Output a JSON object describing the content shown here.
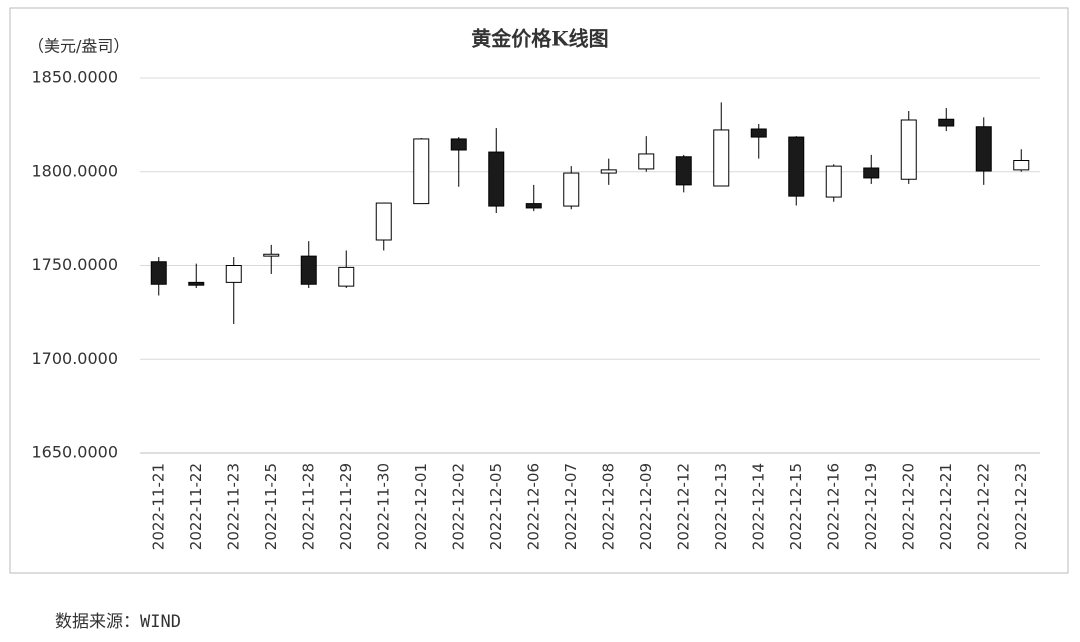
{
  "chart_data": {
    "type": "candlestick",
    "title": "黄金价格K线图",
    "unit_label": "（美元/盎司）",
    "source": "数据来源：WIND",
    "categories": [
      "2022-11-21",
      "2022-11-22",
      "2022-11-23",
      "2022-11-25",
      "2022-11-28",
      "2022-11-29",
      "2022-11-30",
      "2022-12-01",
      "2022-12-02",
      "2022-12-05",
      "2022-12-06",
      "2022-12-07",
      "2022-12-08",
      "2022-12-09",
      "2022-12-12",
      "2022-12-13",
      "2022-12-14",
      "2022-12-15",
      "2022-12-16",
      "2022-12-19",
      "2022-12-20",
      "2022-12-21",
      "2022-12-22",
      "2022-12-23"
    ],
    "open": [
      1752,
      1741,
      1741,
      1755,
      1755,
      1739,
      1763.6,
      1783,
      1817.5,
      1810.5,
      1783,
      1781.7,
      1799.3,
      1801.5,
      1808,
      1792.4,
      1822.8,
      1818.5,
      1786.5,
      1802,
      1796,
      1828,
      1824,
      1801
    ],
    "high": [
      1754.5,
      1751,
      1754.5,
      1761,
      1763,
      1758,
      1783.5,
      1818,
      1818.5,
      1823.3,
      1793,
      1803,
      1807,
      1819,
      1809,
      1837,
      1825.5,
      1819,
      1804,
      1809,
      1832.4,
      1834,
      1829,
      1812
    ],
    "low": [
      1734,
      1738,
      1718.8,
      1745.5,
      1738,
      1738,
      1758,
      1783,
      1792,
      1778,
      1779,
      1780,
      1793,
      1800,
      1789,
      1792.4,
      1807,
      1782,
      1784,
      1793.5,
      1793.5,
      1821.7,
      1793,
      1800
    ],
    "close": [
      1740,
      1739.5,
      1750,
      1756,
      1740,
      1749,
      1783.3,
      1817.5,
      1811.6,
      1781.7,
      1780.7,
      1799.3,
      1801,
      1809.5,
      1793,
      1822.3,
      1818.5,
      1787,
      1803,
      1796.7,
      1827.6,
      1824.4,
      1800.4,
      1806
    ],
    "up_color": "#ffffff",
    "down_color": "#1a1a1a",
    "edge_color": "#000000",
    "ylim": [
      1650,
      1850
    ],
    "yticks": [
      {
        "value": 1650,
        "label": "1650.0000"
      },
      {
        "value": 1700,
        "label": "1700.0000"
      },
      {
        "value": 1750,
        "label": "1750.0000"
      },
      {
        "value": 1800,
        "label": "1800.0000"
      },
      {
        "value": 1850,
        "label": "1850.0000"
      }
    ],
    "grid": true
  }
}
